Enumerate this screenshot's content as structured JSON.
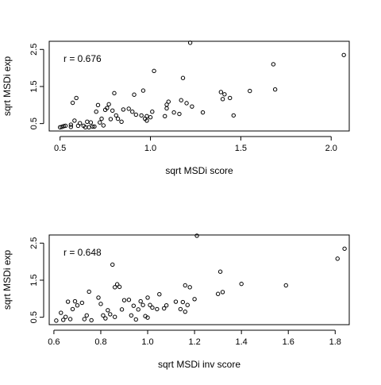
{
  "chart_data": [
    {
      "type": "scatter",
      "xlabel": "sqrt MSDi score",
      "ylabel": "sqrt MSDi exp",
      "annotation": "r =  0.676",
      "xlim": [
        0.44,
        2.1
      ],
      "ylim": [
        0.3,
        2.72
      ],
      "xticks": [
        "0.5",
        "1.0",
        "1.5",
        "2.0"
      ],
      "yticks": [
        "0.5",
        "1.5",
        "2.5"
      ],
      "points": [
        [
          0.5,
          0.4
        ],
        [
          0.51,
          0.41
        ],
        [
          0.52,
          0.43
        ],
        [
          0.53,
          0.44
        ],
        [
          0.56,
          0.41
        ],
        [
          0.56,
          0.47
        ],
        [
          0.57,
          1.06
        ],
        [
          0.58,
          0.58
        ],
        [
          0.59,
          1.19
        ],
        [
          0.6,
          0.44
        ],
        [
          0.61,
          0.51
        ],
        [
          0.63,
          0.44
        ],
        [
          0.64,
          0.4
        ],
        [
          0.65,
          0.55
        ],
        [
          0.66,
          0.4
        ],
        [
          0.67,
          0.53
        ],
        [
          0.68,
          0.42
        ],
        [
          0.69,
          0.42
        ],
        [
          0.7,
          0.82
        ],
        [
          0.71,
          1.0
        ],
        [
          0.72,
          0.53
        ],
        [
          0.73,
          0.63
        ],
        [
          0.74,
          0.45
        ],
        [
          0.75,
          0.87
        ],
        [
          0.76,
          0.92
        ],
        [
          0.77,
          1.02
        ],
        [
          0.78,
          0.62
        ],
        [
          0.79,
          0.85
        ],
        [
          0.8,
          1.32
        ],
        [
          0.81,
          0.72
        ],
        [
          0.82,
          0.63
        ],
        [
          0.84,
          0.55
        ],
        [
          0.85,
          0.88
        ],
        [
          0.88,
          0.9
        ],
        [
          0.9,
          0.82
        ],
        [
          0.91,
          1.28
        ],
        [
          0.92,
          0.74
        ],
        [
          0.95,
          0.72
        ],
        [
          0.96,
          1.39
        ],
        [
          0.97,
          0.63
        ],
        [
          0.98,
          0.7
        ],
        [
          0.98,
          0.58
        ],
        [
          1.0,
          0.67
        ],
        [
          1.01,
          0.82
        ],
        [
          1.02,
          1.92
        ],
        [
          1.08,
          0.7
        ],
        [
          1.09,
          0.91
        ],
        [
          1.09,
          1.01
        ],
        [
          1.1,
          1.09
        ],
        [
          1.13,
          0.8
        ],
        [
          1.16,
          0.76
        ],
        [
          1.17,
          1.13
        ],
        [
          1.18,
          1.73
        ],
        [
          1.2,
          1.05
        ],
        [
          1.22,
          2.68
        ],
        [
          1.23,
          0.96
        ],
        [
          1.29,
          0.8
        ],
        [
          1.39,
          1.35
        ],
        [
          1.4,
          1.16
        ],
        [
          1.41,
          1.29
        ],
        [
          1.44,
          1.19
        ],
        [
          1.46,
          0.72
        ],
        [
          1.55,
          1.38
        ],
        [
          1.68,
          2.1
        ],
        [
          1.69,
          1.42
        ],
        [
          2.07,
          2.35
        ]
      ]
    },
    {
      "type": "scatter",
      "xlabel": "sqrt MSDi inv score",
      "ylabel": "sqrt MSDi exp",
      "annotation": "r =  0.648",
      "xlim": [
        0.58,
        1.86
      ],
      "ylim": [
        0.3,
        2.72
      ],
      "xticks": [
        "0.6",
        "0.8",
        "1.0",
        "1.2",
        "1.4",
        "1.6",
        "1.8"
      ],
      "yticks": [
        "0.5",
        "1.5",
        "2.5"
      ],
      "points": [
        [
          0.61,
          0.41
        ],
        [
          0.63,
          0.62
        ],
        [
          0.64,
          0.43
        ],
        [
          0.65,
          0.51
        ],
        [
          0.66,
          0.92
        ],
        [
          0.67,
          0.45
        ],
        [
          0.68,
          0.72
        ],
        [
          0.69,
          0.93
        ],
        [
          0.7,
          0.82
        ],
        [
          0.72,
          0.89
        ],
        [
          0.73,
          0.45
        ],
        [
          0.74,
          0.55
        ],
        [
          0.75,
          1.19
        ],
        [
          0.76,
          0.42
        ],
        [
          0.79,
          1.03
        ],
        [
          0.8,
          0.86
        ],
        [
          0.81,
          0.55
        ],
        [
          0.82,
          0.47
        ],
        [
          0.83,
          0.69
        ],
        [
          0.84,
          0.58
        ],
        [
          0.85,
          1.92
        ],
        [
          0.86,
          0.51
        ],
        [
          0.86,
          1.31
        ],
        [
          0.87,
          1.39
        ],
        [
          0.88,
          1.32
        ],
        [
          0.89,
          0.71
        ],
        [
          0.9,
          0.96
        ],
        [
          0.92,
          0.97
        ],
        [
          0.93,
          0.55
        ],
        [
          0.94,
          0.81
        ],
        [
          0.95,
          0.44
        ],
        [
          0.96,
          0.71
        ],
        [
          0.97,
          0.93
        ],
        [
          0.98,
          0.83
        ],
        [
          0.99,
          0.53
        ],
        [
          1.0,
          0.49
        ],
        [
          1.0,
          1.03
        ],
        [
          1.01,
          0.83
        ],
        [
          1.02,
          0.76
        ],
        [
          1.04,
          0.72
        ],
        [
          1.05,
          1.12
        ],
        [
          1.07,
          0.74
        ],
        [
          1.08,
          0.82
        ],
        [
          1.12,
          0.92
        ],
        [
          1.14,
          0.72
        ],
        [
          1.15,
          0.91
        ],
        [
          1.16,
          0.65
        ],
        [
          1.16,
          1.36
        ],
        [
          1.17,
          0.83
        ],
        [
          1.18,
          1.31
        ],
        [
          1.2,
          0.99
        ],
        [
          1.21,
          2.7
        ],
        [
          1.3,
          1.13
        ],
        [
          1.31,
          1.73
        ],
        [
          1.32,
          1.18
        ],
        [
          1.4,
          1.4
        ],
        [
          1.59,
          1.36
        ],
        [
          1.81,
          2.08
        ],
        [
          1.84,
          2.35
        ]
      ]
    }
  ]
}
